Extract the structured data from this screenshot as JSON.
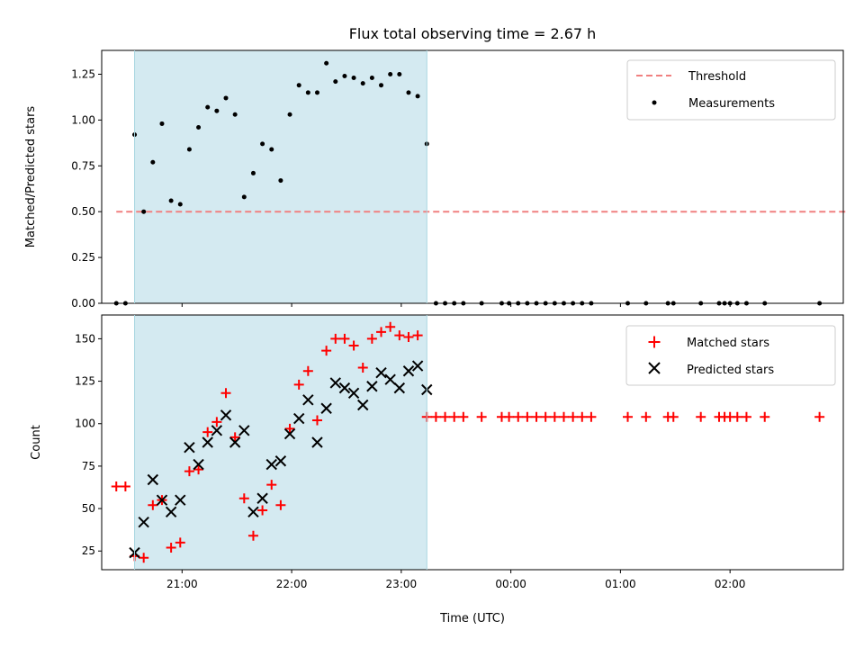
{
  "chart_data": [
    {
      "type": "scatter",
      "title": "Flux total observing time = 2.67 h",
      "xlabel": "",
      "ylabel": "Matched/Predicted stars",
      "xunit": "hours UTC",
      "xlim": [
        "20:16",
        "03:02"
      ],
      "ylim": [
        0,
        1.38
      ],
      "yticks": [
        "0.00",
        "0.25",
        "0.50",
        "0.75",
        "1.00",
        "1.25"
      ],
      "shaded_span": [
        "20:34",
        "23:14"
      ],
      "shade_color": "#d4eaf1",
      "legend_position": "top-right",
      "threshold": {
        "name": "Threshold",
        "value": 0.5,
        "x_range": [
          "20:24",
          "03:04"
        ],
        "color": "#f08080",
        "style": "dashed"
      },
      "series": [
        {
          "name": "Measurements",
          "marker": "dot",
          "color": "#000000",
          "points": [
            [
              "20:24",
              0
            ],
            [
              "20:29",
              0
            ],
            [
              "20:34",
              0.92
            ],
            [
              "20:39",
              0.5
            ],
            [
              "20:44",
              0.77
            ],
            [
              "20:49",
              0.98
            ],
            [
              "20:54",
              0.56
            ],
            [
              "20:59",
              0.54
            ],
            [
              "21:04",
              0.84
            ],
            [
              "21:09",
              0.96
            ],
            [
              "21:14",
              1.07
            ],
            [
              "21:19",
              1.05
            ],
            [
              "21:24",
              1.12
            ],
            [
              "21:29",
              1.03
            ],
            [
              "21:34",
              0.58
            ],
            [
              "21:39",
              0.71
            ],
            [
              "21:44",
              0.87
            ],
            [
              "21:49",
              0.84
            ],
            [
              "21:54",
              0.67
            ],
            [
              "21:59",
              1.03
            ],
            [
              "22:04",
              1.19
            ],
            [
              "22:09",
              1.15
            ],
            [
              "22:14",
              1.15
            ],
            [
              "22:19",
              1.31
            ],
            [
              "22:24",
              1.21
            ],
            [
              "22:29",
              1.24
            ],
            [
              "22:34",
              1.23
            ],
            [
              "22:39",
              1.2
            ],
            [
              "22:44",
              1.23
            ],
            [
              "22:49",
              1.19
            ],
            [
              "22:54",
              1.25
            ],
            [
              "22:59",
              1.25
            ],
            [
              "23:04",
              1.15
            ],
            [
              "23:09",
              1.13
            ],
            [
              "23:14",
              0.87
            ],
            [
              "23:19",
              0
            ],
            [
              "23:24",
              0
            ],
            [
              "23:29",
              0
            ],
            [
              "23:34",
              0
            ],
            [
              "23:44",
              0
            ],
            [
              "23:55",
              0
            ],
            [
              "23:59",
              0
            ],
            [
              "00:04",
              0
            ],
            [
              "00:09",
              0
            ],
            [
              "00:14",
              0
            ],
            [
              "00:19",
              0
            ],
            [
              "00:24",
              0
            ],
            [
              "00:29",
              0
            ],
            [
              "00:34",
              0
            ],
            [
              "00:39",
              0
            ],
            [
              "00:44",
              0
            ],
            [
              "01:04",
              0
            ],
            [
              "01:14",
              0
            ],
            [
              "01:26",
              0
            ],
            [
              "01:29",
              0
            ],
            [
              "01:44",
              0
            ],
            [
              "01:54",
              0
            ],
            [
              "01:57",
              0
            ],
            [
              "02:00",
              0
            ],
            [
              "02:04",
              0
            ],
            [
              "02:09",
              0
            ],
            [
              "02:19",
              0
            ],
            [
              "02:49",
              0
            ]
          ]
        }
      ]
    },
    {
      "type": "scatter",
      "title": "",
      "xlabel": "Time (UTC)",
      "ylabel": "Count",
      "xunit": "hours UTC",
      "xlim": [
        "20:16",
        "03:02"
      ],
      "ylim": [
        14,
        164
      ],
      "yticks": [
        "25",
        "50",
        "75",
        "100",
        "125",
        "150"
      ],
      "xticks": [
        "21:00",
        "22:00",
        "23:00",
        "00:00",
        "01:00",
        "02:00"
      ],
      "shaded_span": [
        "20:34",
        "23:14"
      ],
      "shade_color": "#d4eaf1",
      "legend_position": "top-right",
      "series": [
        {
          "name": "Matched stars",
          "marker": "plus",
          "color": "#ff0000",
          "points": [
            [
              "20:24",
              63
            ],
            [
              "20:29",
              63
            ],
            [
              "20:34",
              22
            ],
            [
              "20:39",
              21
            ],
            [
              "20:44",
              52
            ],
            [
              "20:49",
              55
            ],
            [
              "20:54",
              27
            ],
            [
              "20:59",
              30
            ],
            [
              "21:04",
              72
            ],
            [
              "21:09",
              73
            ],
            [
              "21:14",
              95
            ],
            [
              "21:19",
              101
            ],
            [
              "21:24",
              118
            ],
            [
              "21:29",
              92
            ],
            [
              "21:34",
              56
            ],
            [
              "21:39",
              34
            ],
            [
              "21:44",
              49
            ],
            [
              "21:49",
              64
            ],
            [
              "21:54",
              52
            ],
            [
              "21:59",
              97
            ],
            [
              "22:04",
              123
            ],
            [
              "22:09",
              131
            ],
            [
              "22:14",
              102
            ],
            [
              "22:19",
              143
            ],
            [
              "22:24",
              150
            ],
            [
              "22:29",
              150
            ],
            [
              "22:34",
              146
            ],
            [
              "22:39",
              133
            ],
            [
              "22:44",
              150
            ],
            [
              "22:49",
              154
            ],
            [
              "22:54",
              157
            ],
            [
              "22:59",
              152
            ],
            [
              "23:04",
              151
            ],
            [
              "23:09",
              152
            ],
            [
              "23:14",
              104
            ],
            [
              "23:19",
              104
            ],
            [
              "23:24",
              104
            ],
            [
              "23:29",
              104
            ],
            [
              "23:34",
              104
            ],
            [
              "23:44",
              104
            ],
            [
              "23:55",
              104
            ],
            [
              "23:59",
              104
            ],
            [
              "00:04",
              104
            ],
            [
              "00:09",
              104
            ],
            [
              "00:14",
              104
            ],
            [
              "00:19",
              104
            ],
            [
              "00:24",
              104
            ],
            [
              "00:29",
              104
            ],
            [
              "00:34",
              104
            ],
            [
              "00:39",
              104
            ],
            [
              "00:44",
              104
            ],
            [
              "01:04",
              104
            ],
            [
              "01:14",
              104
            ],
            [
              "01:26",
              104
            ],
            [
              "01:29",
              104
            ],
            [
              "01:44",
              104
            ],
            [
              "01:54",
              104
            ],
            [
              "01:57",
              104
            ],
            [
              "02:00",
              104
            ],
            [
              "02:04",
              104
            ],
            [
              "02:09",
              104
            ],
            [
              "02:19",
              104
            ],
            [
              "02:49",
              104
            ]
          ]
        },
        {
          "name": "Predicted stars",
          "marker": "x",
          "color": "#000000",
          "points": [
            [
              "20:34",
              24
            ],
            [
              "20:39",
              42
            ],
            [
              "20:44",
              67
            ],
            [
              "20:49",
              55
            ],
            [
              "20:54",
              48
            ],
            [
              "20:59",
              55
            ],
            [
              "21:04",
              86
            ],
            [
              "21:09",
              76
            ],
            [
              "21:14",
              89
            ],
            [
              "21:19",
              96
            ],
            [
              "21:24",
              105
            ],
            [
              "21:29",
              89
            ],
            [
              "21:34",
              96
            ],
            [
              "21:39",
              48
            ],
            [
              "21:44",
              56
            ],
            [
              "21:49",
              76
            ],
            [
              "21:54",
              78
            ],
            [
              "21:59",
              94
            ],
            [
              "22:04",
              103
            ],
            [
              "22:09",
              114
            ],
            [
              "22:14",
              89
            ],
            [
              "22:19",
              109
            ],
            [
              "22:24",
              124
            ],
            [
              "22:29",
              121
            ],
            [
              "22:34",
              118
            ],
            [
              "22:39",
              111
            ],
            [
              "22:44",
              122
            ],
            [
              "22:49",
              130
            ],
            [
              "22:54",
              126
            ],
            [
              "22:59",
              121
            ],
            [
              "23:04",
              131
            ],
            [
              "23:09",
              134
            ],
            [
              "23:14",
              120
            ]
          ]
        }
      ]
    }
  ]
}
